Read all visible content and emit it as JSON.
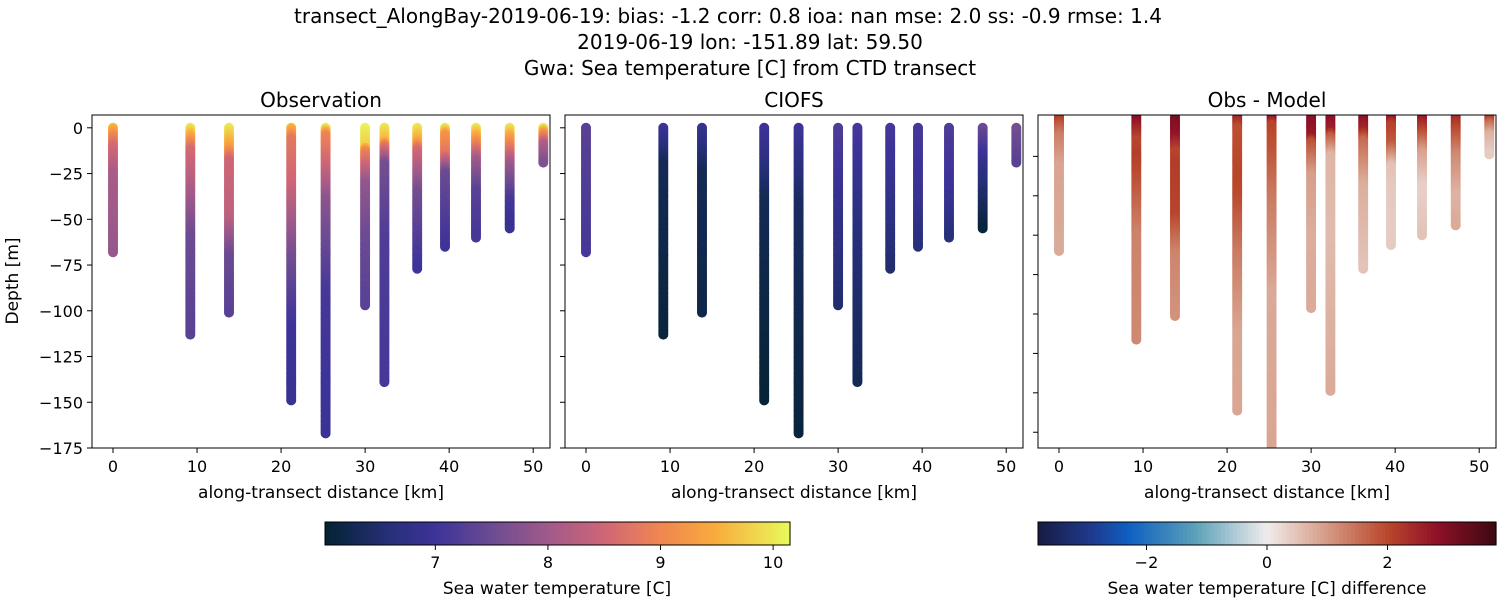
{
  "title_lines": [
    "transect_AlongBay-2019-06-19: bias: -1.2  corr: 0.8  ioa: nan  mse: 2.0  ss: -0.9  rmse: 1.4",
    "2019-06-19 lon: -151.89 lat: 59.50",
    "Gwa: Sea temperature [C] from CTD transect"
  ],
  "chart_data": [
    {
      "type": "scatter",
      "title": "Observation",
      "xlabel": "along-transect distance [km]",
      "ylabel": "Depth [m]",
      "xlim": [
        -2.5,
        52
      ],
      "ylim": [
        -175,
        7
      ],
      "xticks": [
        "0",
        "10",
        "20",
        "30",
        "40",
        "50"
      ],
      "yticks": [
        "0",
        "−25",
        "−50",
        "−75",
        "−100",
        "−125",
        "−150",
        "−175"
      ],
      "color_by": "temperature",
      "casts": [
        {
          "x": 0,
          "depth": 68,
          "profile": [
            [
              0,
              9.6
            ],
            [
              4,
              9.1
            ],
            [
              10,
              8.6
            ],
            [
              25,
              8.1
            ],
            [
              68,
              7.9
            ]
          ]
        },
        {
          "x": 9.2,
          "depth": 113,
          "profile": [
            [
              0,
              10.0
            ],
            [
              5,
              9.4
            ],
            [
              12,
              8.6
            ],
            [
              35,
              8.1
            ],
            [
              60,
              7.5
            ],
            [
              113,
              7.3
            ]
          ]
        },
        {
          "x": 13.8,
          "depth": 101,
          "profile": [
            [
              0,
              10.0
            ],
            [
              10,
              9.4
            ],
            [
              18,
              8.5
            ],
            [
              50,
              8.3
            ],
            [
              70,
              7.5
            ],
            [
              101,
              7.3
            ]
          ]
        },
        {
          "x": 21.2,
          "depth": 149,
          "profile": [
            [
              0,
              9.6
            ],
            [
              6,
              8.8
            ],
            [
              30,
              8.5
            ],
            [
              70,
              7.6
            ],
            [
              110,
              7.0
            ],
            [
              149,
              6.9
            ]
          ]
        },
        {
          "x": 25.3,
          "depth": 167,
          "profile": [
            [
              0,
              10.0
            ],
            [
              4,
              9.0
            ],
            [
              20,
              8.5
            ],
            [
              40,
              7.8
            ],
            [
              90,
              7.1
            ],
            [
              167,
              6.95
            ]
          ]
        },
        {
          "x": 30,
          "depth": 97,
          "profile": [
            [
              0,
              10.1
            ],
            [
              10,
              9.8
            ],
            [
              13,
              9.0
            ],
            [
              30,
              7.9
            ],
            [
              60,
              7.5
            ],
            [
              97,
              7.3
            ]
          ]
        },
        {
          "x": 32.3,
          "depth": 139,
          "profile": [
            [
              0,
              10.0
            ],
            [
              7,
              9.6
            ],
            [
              10,
              8.8
            ],
            [
              20,
              7.6
            ],
            [
              60,
              7.2
            ],
            [
              139,
              7.1
            ]
          ]
        },
        {
          "x": 36.2,
          "depth": 77,
          "profile": [
            [
              0,
              10.0
            ],
            [
              7,
              9.5
            ],
            [
              12,
              8.6
            ],
            [
              35,
              7.6
            ],
            [
              77,
              7.0
            ]
          ]
        },
        {
          "x": 39.5,
          "depth": 65,
          "profile": [
            [
              0,
              10.0
            ],
            [
              4,
              9.2
            ],
            [
              14,
              8.8
            ],
            [
              25,
              7.5
            ],
            [
              65,
              7.0
            ]
          ]
        },
        {
          "x": 43.2,
          "depth": 60,
          "profile": [
            [
              0,
              10.0
            ],
            [
              6,
              9.3
            ],
            [
              18,
              8.0
            ],
            [
              35,
              7.3
            ],
            [
              60,
              7.1
            ]
          ]
        },
        {
          "x": 47.2,
          "depth": 55,
          "profile": [
            [
              0,
              10.0
            ],
            [
              6,
              9.3
            ],
            [
              20,
              8.0
            ],
            [
              40,
              7.1
            ],
            [
              55,
              6.9
            ]
          ]
        },
        {
          "x": 51.2,
          "depth": 19,
          "profile": [
            [
              0,
              10.0
            ],
            [
              3,
              9.2
            ],
            [
              9,
              8.2
            ],
            [
              19,
              7.7
            ]
          ]
        }
      ]
    },
    {
      "type": "scatter",
      "title": "CIOFS",
      "xlabel": "along-transect distance [km]",
      "xlim": [
        -2.5,
        52
      ],
      "ylim": [
        -175,
        7
      ],
      "xticks": [
        "0",
        "10",
        "20",
        "30",
        "40",
        "50"
      ],
      "color_by": "temperature",
      "casts": [
        {
          "x": 0,
          "depth": 68,
          "profile": [
            [
              0,
              7.3
            ],
            [
              68,
              7.1
            ]
          ]
        },
        {
          "x": 9.2,
          "depth": 113,
          "profile": [
            [
              0,
              7.0
            ],
            [
              20,
              6.3
            ],
            [
              113,
              6.1
            ]
          ]
        },
        {
          "x": 13.8,
          "depth": 101,
          "profile": [
            [
              0,
              6.9
            ],
            [
              25,
              6.3
            ],
            [
              101,
              6.2
            ]
          ]
        },
        {
          "x": 21.2,
          "depth": 149,
          "profile": [
            [
              0,
              7.0
            ],
            [
              40,
              6.3
            ],
            [
              149,
              6.05
            ]
          ]
        },
        {
          "x": 25.3,
          "depth": 167,
          "profile": [
            [
              0,
              7.0
            ],
            [
              40,
              6.4
            ],
            [
              167,
              6.1
            ]
          ]
        },
        {
          "x": 30,
          "depth": 97,
          "profile": [
            [
              0,
              7.2
            ],
            [
              50,
              6.8
            ],
            [
              97,
              6.5
            ]
          ]
        },
        {
          "x": 32.3,
          "depth": 139,
          "profile": [
            [
              0,
              7.1
            ],
            [
              60,
              6.6
            ],
            [
              139,
              6.3
            ]
          ]
        },
        {
          "x": 36.2,
          "depth": 77,
          "profile": [
            [
              0,
              7.1
            ],
            [
              40,
              6.8
            ],
            [
              77,
              6.5
            ]
          ]
        },
        {
          "x": 39.5,
          "depth": 65,
          "profile": [
            [
              0,
              7.1
            ],
            [
              40,
              6.9
            ],
            [
              65,
              6.6
            ]
          ]
        },
        {
          "x": 43.2,
          "depth": 60,
          "profile": [
            [
              0,
              7.2
            ],
            [
              40,
              6.9
            ],
            [
              60,
              6.6
            ]
          ]
        },
        {
          "x": 47.2,
          "depth": 55,
          "profile": [
            [
              0,
              7.5
            ],
            [
              20,
              6.8
            ],
            [
              55,
              6.1
            ]
          ]
        },
        {
          "x": 51.2,
          "depth": 19,
          "profile": [
            [
              0,
              7.6
            ],
            [
              19,
              7.3
            ]
          ]
        }
      ]
    },
    {
      "type": "scatter",
      "title": "Obs - Model",
      "xlabel": "along-transect distance [km]",
      "xlim": [
        -2.5,
        52
      ],
      "ylim": [
        -168,
        1
      ],
      "xticks": [
        "0",
        "10",
        "20",
        "30",
        "40",
        "50"
      ],
      "color_by": "temperature difference (Observation − CIOFS)"
    }
  ],
  "colorbars": [
    {
      "label": "Sea water temperature [C]",
      "range": [
        6.02,
        10.15
      ],
      "ticks": [
        "7",
        "8",
        "9",
        "10"
      ],
      "tick_values": [
        7,
        8,
        9,
        10
      ],
      "stops": [
        [
          6.02,
          "#042333"
        ],
        [
          6.6,
          "#27307a"
        ],
        [
          7.0,
          "#3d3399"
        ],
        [
          7.5,
          "#6c4b92"
        ],
        [
          8.0,
          "#a05a8a"
        ],
        [
          8.5,
          "#cf6676"
        ],
        [
          9.0,
          "#f08650"
        ],
        [
          9.5,
          "#f9ac3d"
        ],
        [
          10.15,
          "#e8fa5b"
        ]
      ]
    },
    {
      "label": "Sea water temperature [C] difference",
      "range": [
        -3.8,
        3.8
      ],
      "ticks": [
        "−2",
        "0",
        "2"
      ],
      "tick_values": [
        -2,
        0,
        2
      ],
      "stops": [
        [
          -3.8,
          "#181c43"
        ],
        [
          -2.9,
          "#1f3a8f"
        ],
        [
          -2.3,
          "#0f5fc2"
        ],
        [
          -1.2,
          "#5aa0b9"
        ],
        [
          0,
          "#f1ecec"
        ],
        [
          1.0,
          "#d59a84"
        ],
        [
          2.0,
          "#b9472c"
        ],
        [
          2.8,
          "#901128"
        ],
        [
          3.8,
          "#3c0912"
        ]
      ]
    }
  ]
}
